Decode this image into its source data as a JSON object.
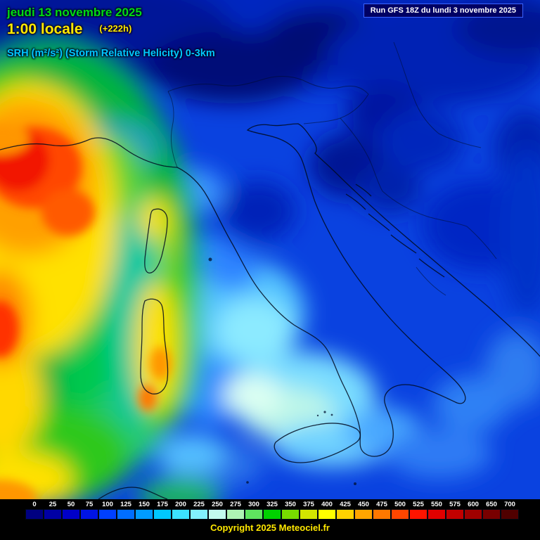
{
  "header": {
    "date": "jeudi 13 novembre 2025",
    "time": "1:00 locale",
    "offset": "(+222h)",
    "parameter": "SRH (m²/s²) (Storm Relative Helicity) 0-3km",
    "run_info": "Run GFS 18Z du lundi 3 novembre 2025"
  },
  "legend": {
    "values": [
      "0",
      "25",
      "50",
      "75",
      "100",
      "125",
      "150",
      "175",
      "200",
      "225",
      "250",
      "275",
      "300",
      "325",
      "350",
      "375",
      "400",
      "425",
      "450",
      "475",
      "500",
      "525",
      "550",
      "575",
      "600",
      "650",
      "700"
    ],
    "colors": [
      "#000080",
      "#0000a4",
      "#0000c8",
      "#0014e6",
      "#0040ff",
      "#006eff",
      "#009cff",
      "#00c8ff",
      "#3ce1ff",
      "#82f0ff",
      "#c3fbef",
      "#aef3b4",
      "#5fe55f",
      "#00d200",
      "#78dc00",
      "#d2e600",
      "#ffff00",
      "#ffd200",
      "#ffa500",
      "#ff7800",
      "#ff4600",
      "#ff1400",
      "#e10000",
      "#c30000",
      "#a00000",
      "#780000",
      "#500000"
    ]
  },
  "footer": {
    "copyright": "Copyright 2025 Meteociel.fr"
  }
}
